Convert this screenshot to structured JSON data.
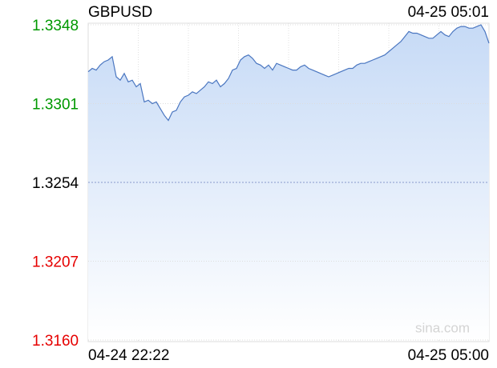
{
  "chart_data": {
    "type": "line",
    "title": "GBPUSD",
    "timestamp": "04-25 05:01",
    "watermark": "sina.com",
    "categories": [
      "04-24 22:22",
      null,
      null,
      null,
      null,
      null,
      null,
      null,
      null,
      null,
      null,
      null,
      null,
      null,
      null,
      null,
      null,
      null,
      null,
      null,
      null,
      null,
      null,
      null,
      null,
      null,
      null,
      null,
      null,
      null,
      null,
      null,
      null,
      null,
      null,
      null,
      null,
      null,
      null,
      null,
      null,
      null,
      null,
      null,
      null,
      null,
      null,
      null,
      null,
      null,
      null,
      null,
      null,
      null,
      null,
      null,
      null,
      null,
      null,
      null,
      null,
      null,
      null,
      null,
      null,
      null,
      null,
      null,
      null,
      null,
      null,
      null,
      null,
      null,
      null,
      null,
      null,
      null,
      null,
      null,
      null,
      null,
      null,
      null,
      null,
      null,
      null,
      null,
      null,
      null,
      null,
      null,
      null,
      null,
      null,
      null,
      null,
      null,
      null,
      null,
      "04-25 05:00"
    ],
    "series": [
      {
        "color": "#4a76c0",
        "values": [
          1.332,
          1.3322,
          1.3321,
          1.3324,
          1.3326,
          1.3327,
          1.3329,
          1.3317,
          1.3315,
          1.3319,
          1.3314,
          1.3315,
          1.3311,
          1.3313,
          1.3302,
          1.3303,
          1.3301,
          1.3302,
          1.3298,
          1.3294,
          1.3291,
          1.3296,
          1.3297,
          1.3302,
          1.3305,
          1.3306,
          1.3308,
          1.3307,
          1.3309,
          1.3311,
          1.3314,
          1.3313,
          1.3315,
          1.3311,
          1.3313,
          1.3316,
          1.3321,
          1.3322,
          1.3327,
          1.3329,
          1.333,
          1.3328,
          1.3325,
          1.3324,
          1.3322,
          1.3324,
          1.3321,
          1.3325,
          1.3324,
          1.3323,
          1.3322,
          1.3321,
          1.3321,
          1.3323,
          1.3324,
          1.3322,
          1.3321,
          1.332,
          1.3319,
          1.3318,
          1.3317,
          1.3318,
          1.3319,
          1.332,
          1.3321,
          1.3322,
          1.3322,
          1.3324,
          1.3325,
          1.3325,
          1.3326,
          1.3327,
          1.3328,
          1.3329,
          1.333,
          1.3332,
          1.3334,
          1.3336,
          1.3338,
          1.3341,
          1.3344,
          1.3343,
          1.3343,
          1.3342,
          1.3341,
          1.334,
          1.334,
          1.3342,
          1.3344,
          1.3342,
          1.3341,
          1.3344,
          1.3346,
          1.3347,
          1.3347,
          1.3346,
          1.3346,
          1.3347,
          1.3348,
          1.3344,
          1.3337
        ]
      }
    ],
    "ylim": [
      1.316,
      1.3348
    ],
    "yticks": [
      {
        "value": 1.316,
        "label": "1.3160"
      },
      1.3207,
      1.3254,
      1.3301,
      1.3348
    ],
    "grid": true,
    "up_color": "#009900",
    "down_color": "#e60000",
    "flat_color": "#000000",
    "fill_color": "#c6daf6"
  }
}
